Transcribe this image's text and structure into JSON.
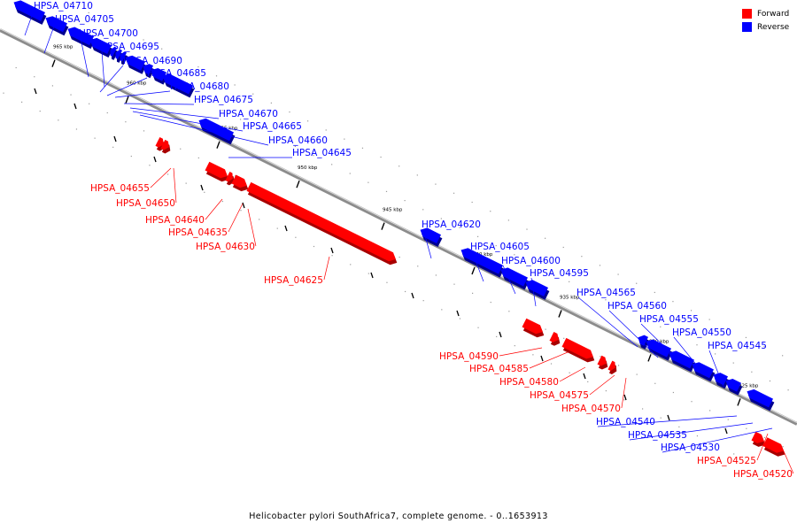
{
  "legend": {
    "forward_label": "Forward",
    "reverse_label": "Reverse",
    "forward_color": "#ff0000",
    "reverse_color": "#0000ff"
  },
  "caption": "Helicobacter pylori SouthAfrica7, complete genome. - 0..1653913",
  "scale": {
    "ticks": [
      "965 kbp",
      "960 kbp",
      "955 kbp",
      "950 kbp",
      "945 kbp",
      "940 kbp",
      "935 kbp",
      "930 kbp",
      "925 kbp"
    ]
  },
  "genes": {
    "reverse": [
      "HPSA_04710",
      "HPSA_04705",
      "HPSA_04700",
      "HPSA_04695",
      "HPSA_04690",
      "HPSA_04685",
      "HPSA_04680",
      "HPSA_04675",
      "HPSA_04670",
      "HPSA_04665",
      "HPSA_04660",
      "HPSA_04645",
      "HPSA_04620",
      "HPSA_04605",
      "HPSA_04600",
      "HPSA_04595",
      "HPSA_04565",
      "HPSA_04560",
      "HPSA_04555",
      "HPSA_04550",
      "HPSA_04545",
      "HPSA_04540",
      "HPSA_04535",
      "HPSA_04530"
    ],
    "forward": [
      "HPSA_04655",
      "HPSA_04650",
      "HPSA_04640",
      "HPSA_04635",
      "HPSA_04630",
      "HPSA_04625",
      "HPSA_04590",
      "HPSA_04585",
      "HPSA_04580",
      "HPSA_04575",
      "HPSA_04570",
      "HPSA_04525",
      "HPSA_04520"
    ]
  }
}
